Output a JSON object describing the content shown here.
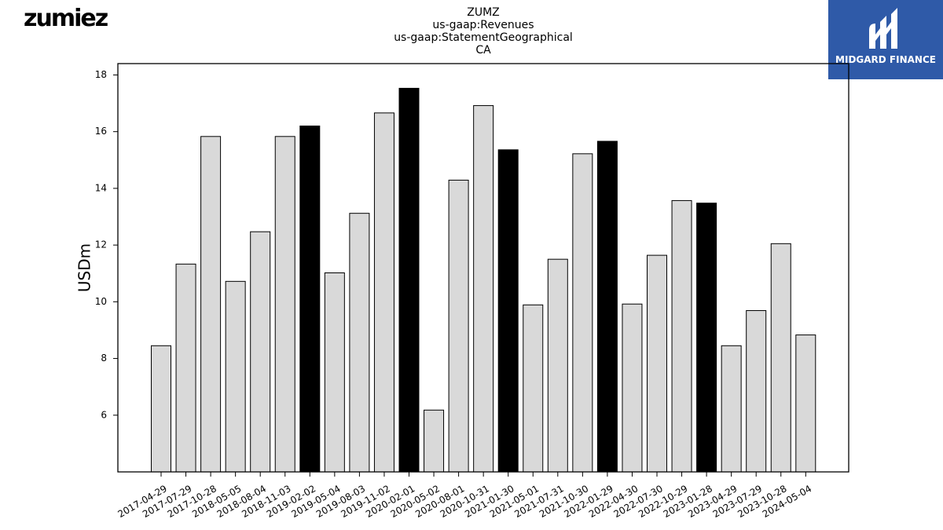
{
  "brand": {
    "logo_text": "zumiez"
  },
  "partner": {
    "logo_text": "MIDGARD FINANCE"
  },
  "colors": {
    "bar_default": "#d9d9d9",
    "bar_highlight": "#000000",
    "partner_blue": "#2f5aa8"
  },
  "chart_data": {
    "type": "bar",
    "title_lines": [
      "ZUMZ",
      "us-gaap:Revenues",
      "us-gaap:StatementGeographical",
      "CA"
    ],
    "xlabel": "",
    "ylabel": "USDm",
    "ylim": [
      4,
      18.4
    ],
    "yticks": [
      6,
      8,
      10,
      12,
      14,
      16,
      18
    ],
    "categories": [
      "2017-04-29",
      "2017-07-29",
      "2017-10-28",
      "2018-05-05",
      "2018-08-04",
      "2018-11-03",
      "2019-02-02",
      "2019-05-04",
      "2019-08-03",
      "2019-11-02",
      "2020-02-01",
      "2020-05-02",
      "2020-08-01",
      "2020-10-31",
      "2021-01-30",
      "2021-05-01",
      "2021-07-31",
      "2021-10-30",
      "2022-01-29",
      "2022-04-30",
      "2022-07-30",
      "2022-10-29",
      "2023-01-28",
      "2023-04-29",
      "2023-07-29",
      "2023-10-28",
      "2024-05-04"
    ],
    "values": [
      8.45,
      11.33,
      15.83,
      10.72,
      12.47,
      15.83,
      16.2,
      11.02,
      13.12,
      16.66,
      17.53,
      6.18,
      14.29,
      16.92,
      15.36,
      9.89,
      11.5,
      15.22,
      15.66,
      9.92,
      11.64,
      13.57,
      13.48,
      8.45,
      9.69,
      12.05,
      8.83
    ],
    "highlight_categories": [
      "2019-02-02",
      "2020-02-01",
      "2021-01-30",
      "2022-01-29",
      "2023-01-28"
    ],
    "grid": false,
    "legend": "none"
  }
}
